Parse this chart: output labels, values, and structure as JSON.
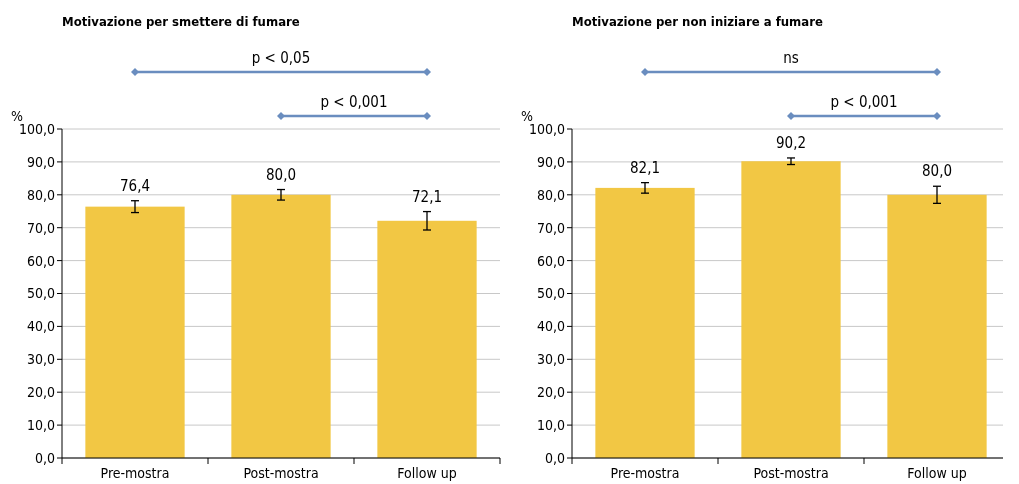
{
  "chart_data": [
    {
      "type": "bar",
      "title": "Motivazione per smettere di fumare",
      "ylabel": "%",
      "categories": [
        "Pre-mostra",
        "Post-mostra",
        "Follow up"
      ],
      "values": [
        76.4,
        80.0,
        72.1
      ],
      "errors": [
        1.8,
        1.6,
        2.8
      ],
      "value_labels": [
        "76,4",
        "80,0",
        "72,1"
      ],
      "color": "#f2c744",
      "ylim": [
        0,
        100
      ],
      "yticks": [
        {
          "value": 0,
          "label": "0,0"
        },
        {
          "value": 10,
          "label": "10,0"
        },
        {
          "value": 20,
          "label": "20,0"
        },
        {
          "value": 30,
          "label": "30,0"
        },
        {
          "value": 40,
          "label": "40,0"
        },
        {
          "value": 50,
          "label": "50,0"
        },
        {
          "value": 60,
          "label": "60,0"
        },
        {
          "value": 70,
          "label": "70,0"
        },
        {
          "value": 80,
          "label": "80,0"
        },
        {
          "value": 90,
          "label": "90,0"
        },
        {
          "value": 100,
          "label": "100,0"
        }
      ],
      "grid": "y",
      "annotations": [
        "p < 0,05",
        "p < 0,001"
      ]
    },
    {
      "type": "bar",
      "title": "Motivazione per non iniziare a fumare",
      "ylabel": "%",
      "categories": [
        "Pre-mostra",
        "Post-mostra",
        "Follow up"
      ],
      "values": [
        82.1,
        90.2,
        80.0
      ],
      "errors": [
        1.6,
        1.0,
        2.6
      ],
      "value_labels": [
        "82,1",
        "90,2",
        "80,0"
      ],
      "color": "#f2c744",
      "ylim": [
        0,
        100
      ],
      "yticks": [
        {
          "value": 0,
          "label": "0,0"
        },
        {
          "value": 10,
          "label": "10,0"
        },
        {
          "value": 20,
          "label": "20,0"
        },
        {
          "value": 30,
          "label": "30,0"
        },
        {
          "value": 40,
          "label": "40,0"
        },
        {
          "value": 50,
          "label": "50,0"
        },
        {
          "value": 60,
          "label": "60,0"
        },
        {
          "value": 70,
          "label": "70,0"
        },
        {
          "value": 80,
          "label": "80,0"
        },
        {
          "value": 90,
          "label": "90,0"
        },
        {
          "value": 100,
          "label": "100,0"
        }
      ],
      "grid": "y",
      "annotations": [
        "ns",
        "p < 0,001"
      ]
    }
  ]
}
